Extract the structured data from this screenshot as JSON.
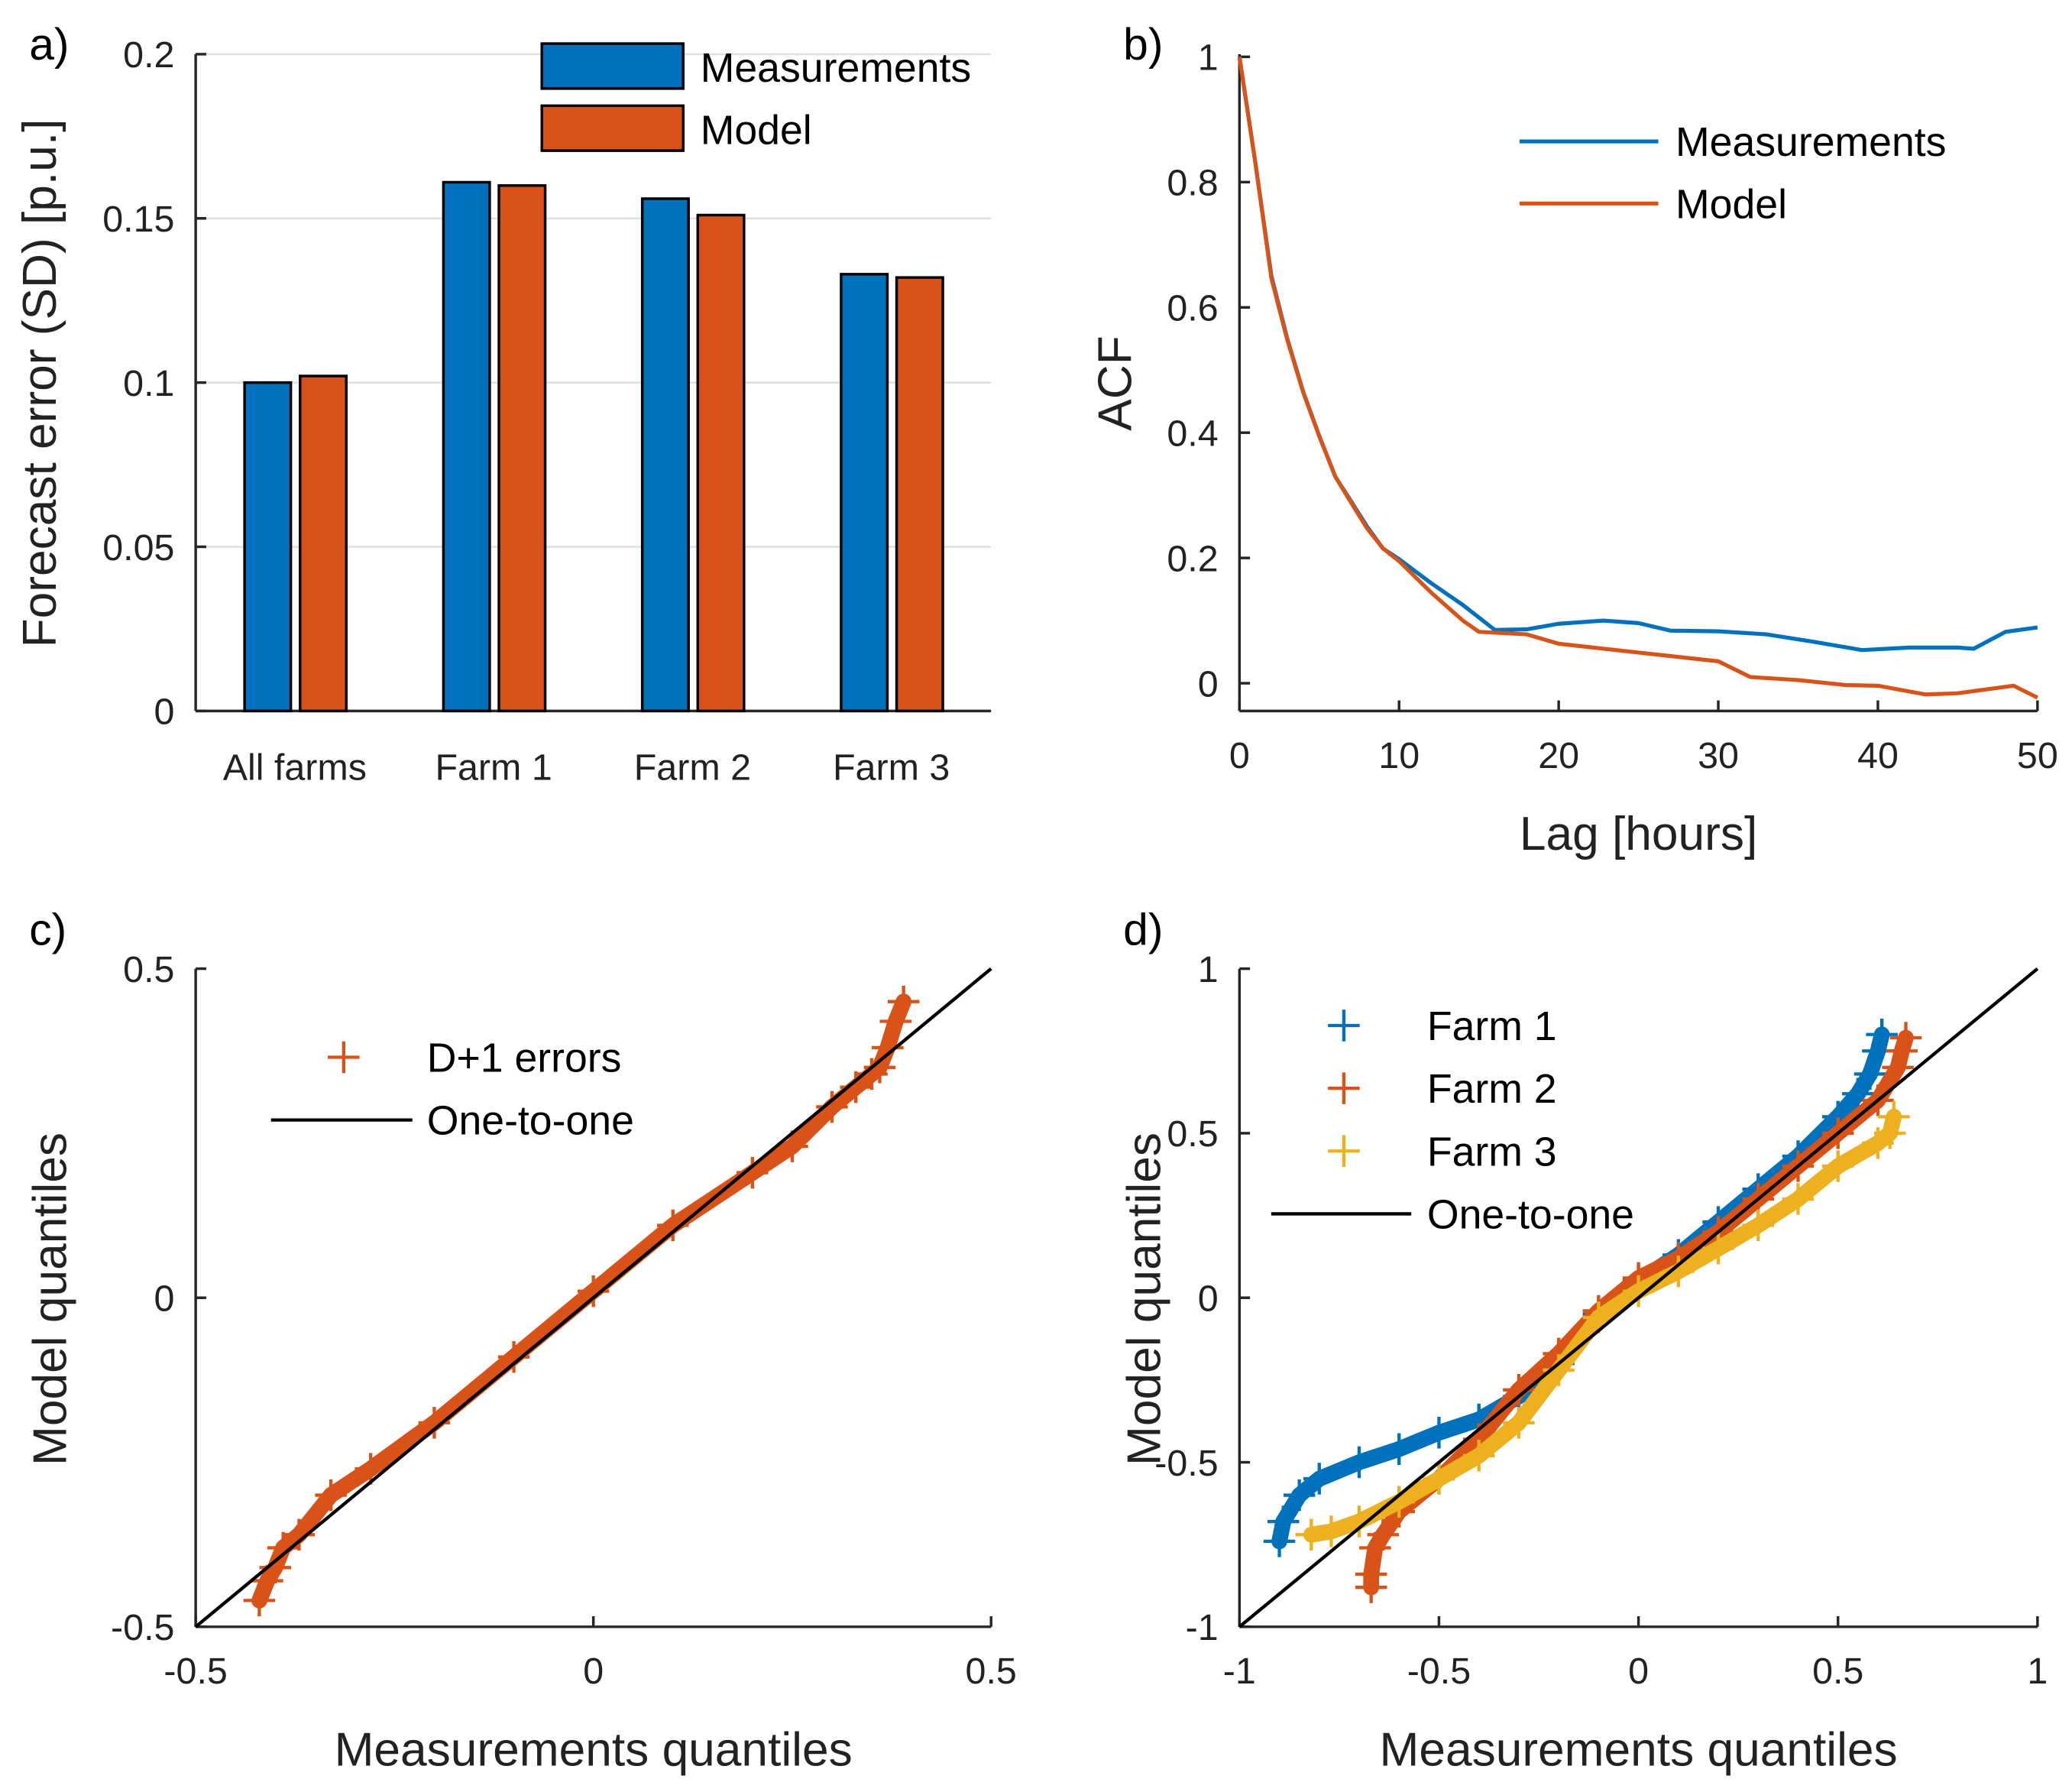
{
  "colors": {
    "blue": "#0072BD",
    "orange": "#D95319",
    "yellow": "#EDB120",
    "black": "#000000"
  },
  "chart_data": [
    {
      "panel_label": "a)",
      "type": "bar",
      "ylabel": "Forecast error (SD) [p.u.]",
      "ylim": [
        0,
        0.2
      ],
      "yticks": [
        0,
        0.05,
        0.1,
        0.15,
        0.2
      ],
      "ytick_labels": [
        "0",
        "0.05",
        "0.1",
        "0.15",
        "0.2"
      ],
      "grid": true,
      "categories": [
        "All farms",
        "Farm 1",
        "Farm 2",
        "Farm 3"
      ],
      "legend": "top-right",
      "series": [
        {
          "name": "Measurements",
          "values": [
            0.1,
            0.161,
            0.156,
            0.133
          ]
        },
        {
          "name": "Model",
          "values": [
            0.102,
            0.16,
            0.151,
            0.132
          ]
        }
      ]
    },
    {
      "panel_label": "b)",
      "type": "line",
      "xlabel": "Lag [hours]",
      "ylabel": "ACF",
      "xlim": [
        0,
        50
      ],
      "ylim": [
        -0.045,
        1.0
      ],
      "xticks": [
        0,
        10,
        20,
        30,
        40,
        50
      ],
      "xtick_labels": [
        "0",
        "10",
        "20",
        "30",
        "40",
        "50"
      ],
      "yticks": [
        0,
        0.2,
        0.4,
        0.6,
        0.8,
        1
      ],
      "ytick_labels": [
        "0",
        "0.2",
        "0.4",
        "0.6",
        "0.8",
        "1"
      ],
      "legend": "top-right",
      "series": [
        {
          "name": "Measurements",
          "x": [
            0,
            1,
            2,
            3,
            4,
            5,
            6,
            7,
            8,
            9,
            10,
            12,
            14,
            16,
            18,
            20,
            22.8,
            25,
            27,
            30,
            33,
            36,
            39,
            42,
            45,
            46,
            48,
            50
          ],
          "y": [
            1,
            0.83,
            0.65,
            0.55,
            0.465,
            0.395,
            0.33,
            0.29,
            0.25,
            0.215,
            0.198,
            0.16,
            0.125,
            0.085,
            0.086,
            0.095,
            0.1,
            0.096,
            0.084,
            0.083,
            0.078,
            0.066,
            0.053,
            0.057,
            0.057,
            0.055,
            0.082,
            0.089
          ]
        },
        {
          "name": "Model",
          "x": [
            0,
            1,
            2,
            3,
            4,
            5,
            6,
            7,
            8,
            9,
            10,
            12,
            14,
            15,
            18,
            20,
            25,
            30,
            32,
            35,
            38,
            40,
            43,
            45,
            48.5,
            50
          ],
          "y": [
            1,
            0.83,
            0.646,
            0.548,
            0.464,
            0.394,
            0.33,
            0.288,
            0.247,
            0.215,
            0.195,
            0.145,
            0.1,
            0.082,
            0.078,
            0.063,
            0.049,
            0.035,
            0.01,
            0.005,
            -0.003,
            -0.004,
            -0.018,
            -0.016,
            -0.004,
            -0.023
          ]
        }
      ]
    },
    {
      "panel_label": "c)",
      "type": "scatter",
      "xlabel": "Measurements quantiles",
      "ylabel": "Model quantiles",
      "xlim": [
        -0.5,
        0.5
      ],
      "ylim": [
        -0.5,
        0.5
      ],
      "xticks": [
        -0.5,
        0,
        0.5
      ],
      "xtick_labels": [
        "-0.5",
        "0",
        "0.5"
      ],
      "yticks": [
        -0.5,
        0,
        0.5
      ],
      "ytick_labels": [
        "-0.5",
        "0",
        "0.5"
      ],
      "legend": "top-left",
      "series": [
        {
          "name": "D+1 errors",
          "x": [
            -0.42,
            -0.41,
            -0.4,
            -0.39,
            -0.37,
            -0.33,
            -0.28,
            -0.2,
            -0.1,
            0,
            0.1,
            0.2,
            0.25,
            0.3,
            0.33,
            0.35,
            0.36,
            0.37,
            0.38,
            0.39
          ],
          "y": [
            -0.46,
            -0.43,
            -0.41,
            -0.38,
            -0.36,
            -0.3,
            -0.26,
            -0.19,
            -0.09,
            0.01,
            0.11,
            0.19,
            0.23,
            0.29,
            0.32,
            0.34,
            0.35,
            0.38,
            0.42,
            0.45
          ]
        }
      ],
      "reference_line": {
        "name": "One-to-one"
      }
    },
    {
      "panel_label": "d)",
      "type": "scatter",
      "xlabel": "Measurements quantiles",
      "ylabel": "Model quantiles",
      "xlim": [
        -1,
        1
      ],
      "ylim": [
        -1,
        1
      ],
      "xticks": [
        -1,
        -0.5,
        0,
        0.5,
        1
      ],
      "xtick_labels": [
        "-1",
        "-0.5",
        "0",
        "0.5",
        "1"
      ],
      "yticks": [
        -1,
        -0.5,
        0,
        0.5,
        1
      ],
      "ytick_labels": [
        "-1",
        "-0.5",
        "0",
        "0.5",
        "1"
      ],
      "legend": "top-left",
      "series": [
        {
          "name": "Farm 1",
          "x": [
            -0.9,
            -0.89,
            -0.85,
            -0.8,
            -0.7,
            -0.6,
            -0.5,
            -0.4,
            -0.3,
            -0.2,
            -0.1,
            0,
            0.1,
            0.2,
            0.3,
            0.4,
            0.5,
            0.55,
            0.58,
            0.6,
            0.61
          ],
          "y": [
            -0.74,
            -0.68,
            -0.6,
            -0.55,
            -0.5,
            -0.46,
            -0.41,
            -0.37,
            -0.3,
            -0.2,
            -0.05,
            0.05,
            0.13,
            0.23,
            0.33,
            0.43,
            0.55,
            0.62,
            0.68,
            0.75,
            0.8
          ]
        },
        {
          "name": "Farm 2",
          "x": [
            -0.67,
            -0.67,
            -0.66,
            -0.64,
            -0.6,
            -0.5,
            -0.4,
            -0.3,
            -0.2,
            -0.1,
            0,
            0.1,
            0.2,
            0.3,
            0.4,
            0.5,
            0.6,
            0.65,
            0.66,
            0.67
          ],
          "y": [
            -0.88,
            -0.84,
            -0.76,
            -0.72,
            -0.65,
            -0.55,
            -0.43,
            -0.28,
            -0.17,
            -0.04,
            0.06,
            0.12,
            0.2,
            0.3,
            0.4,
            0.5,
            0.6,
            0.7,
            0.75,
            0.79
          ]
        },
        {
          "name": "Farm 3",
          "x": [
            -0.82,
            -0.77,
            -0.7,
            -0.6,
            -0.5,
            -0.4,
            -0.3,
            -0.2,
            -0.1,
            0,
            0.1,
            0.2,
            0.3,
            0.4,
            0.5,
            0.6,
            0.63,
            0.64
          ],
          "y": [
            -0.72,
            -0.71,
            -0.68,
            -0.62,
            -0.55,
            -0.48,
            -0.38,
            -0.22,
            -0.06,
            0.02,
            0.08,
            0.15,
            0.22,
            0.3,
            0.4,
            0.47,
            0.5,
            0.55
          ]
        }
      ],
      "reference_line": {
        "name": "One-to-one"
      }
    }
  ]
}
